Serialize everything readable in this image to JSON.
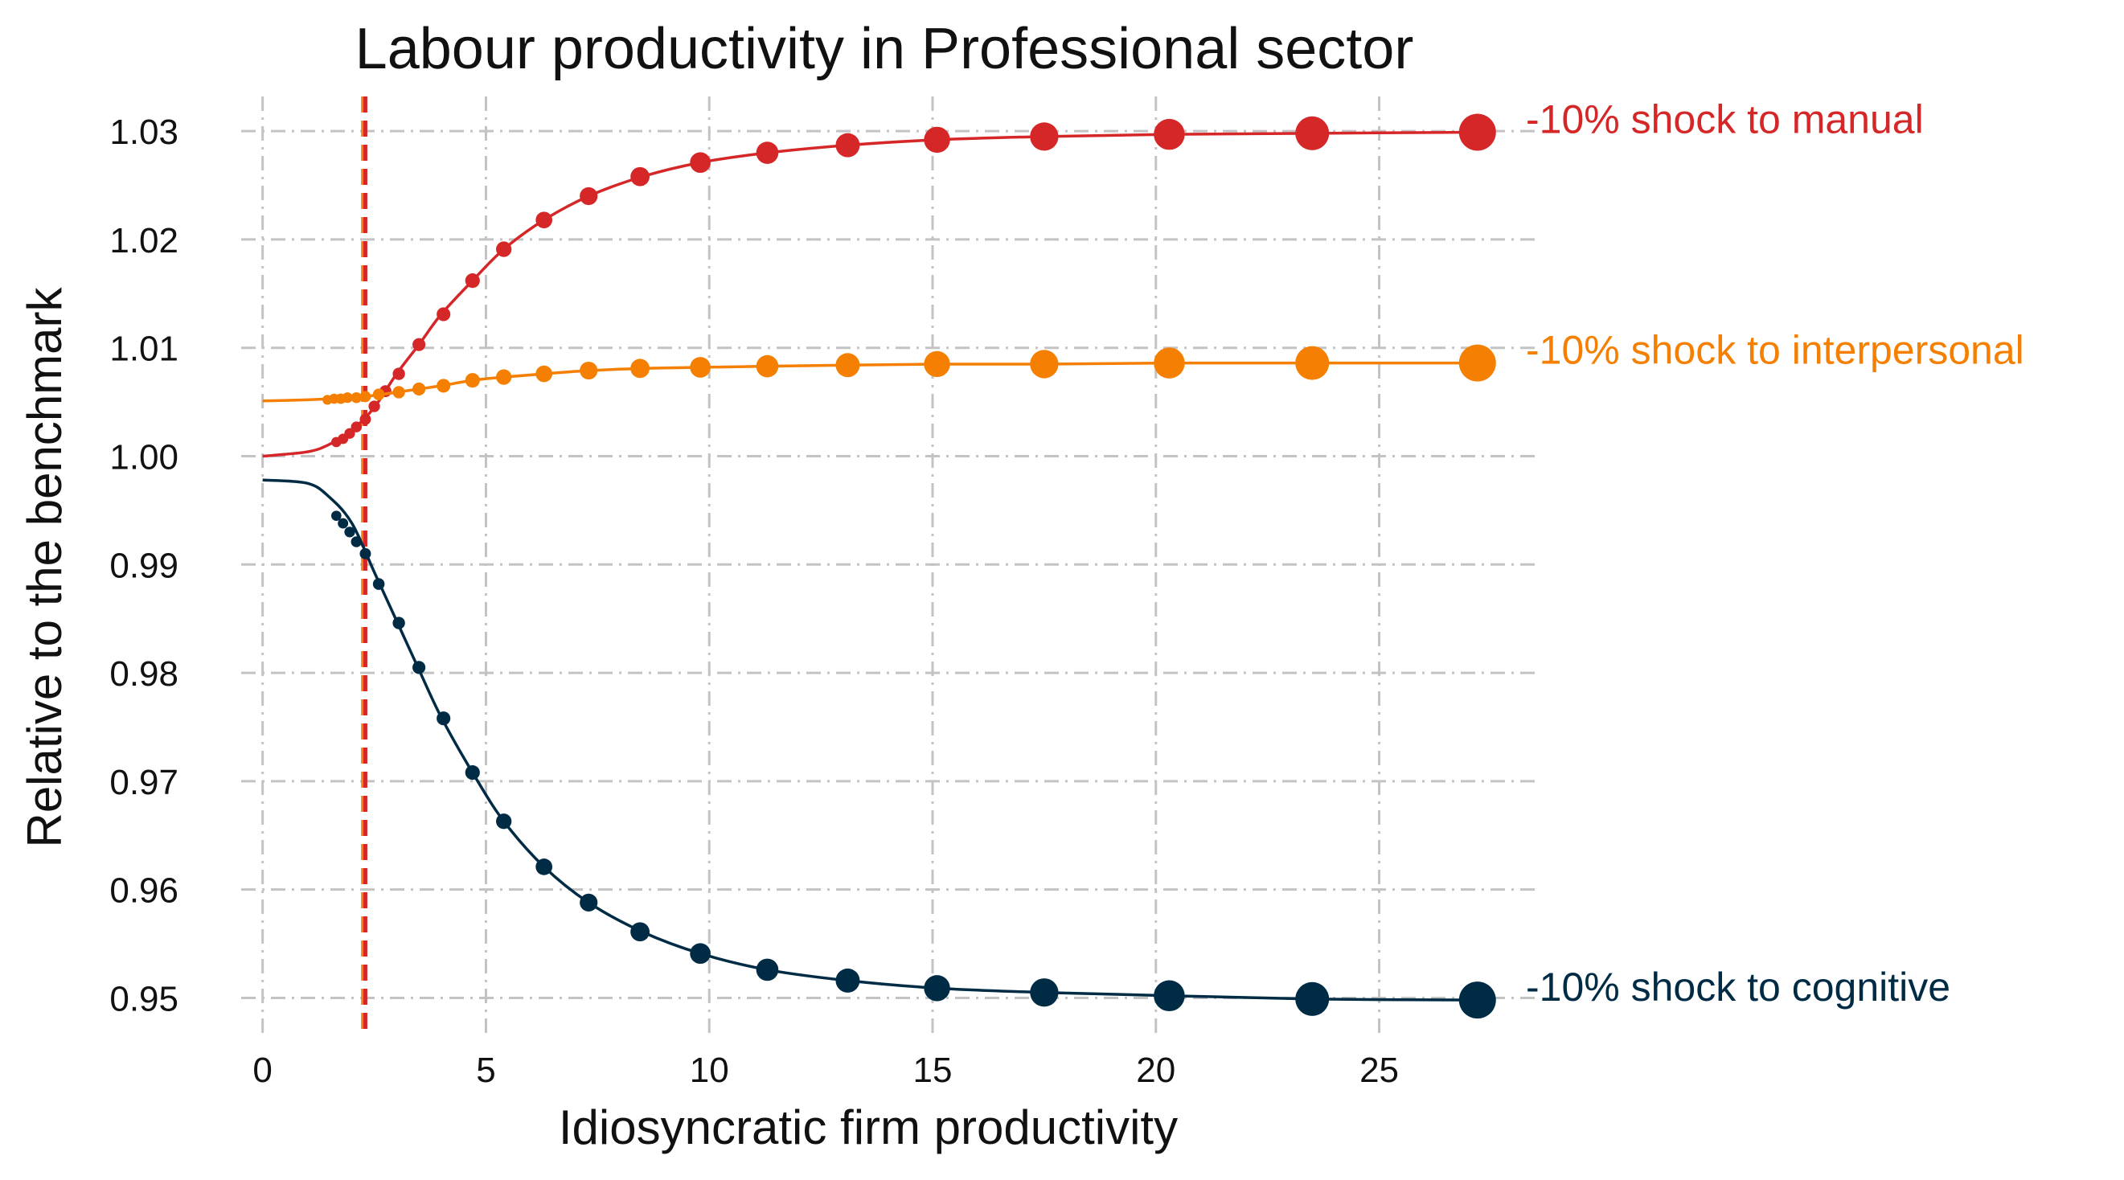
{
  "chart_data": {
    "type": "line",
    "title": "Labour productivity in Professional sector",
    "xlabel": "Idiosyncratic firm productivity",
    "ylabel": "Relative to the benchmark",
    "xlim": [
      -1.2,
      28.5
    ],
    "ylim": [
      0.9464,
      1.0332
    ],
    "xticks": [
      0,
      5,
      10,
      15,
      20,
      25
    ],
    "yticks": [
      0.95,
      0.96,
      0.97,
      0.98,
      0.99,
      1.0,
      1.01,
      1.02,
      1.03
    ],
    "ytick_labels": [
      "0.95",
      "0.96",
      "0.97",
      "0.98",
      "0.99",
      "1.00",
      "1.01",
      "1.02",
      "1.03"
    ],
    "grid": true,
    "vertical_lines": [
      {
        "x": 2.25,
        "color": "#f57f17",
        "style": "dashed"
      },
      {
        "x": 2.3,
        "color": "#d62728",
        "style": "dashed"
      }
    ],
    "series": [
      {
        "name": "-10% shock to manual",
        "color": "#d62728",
        "line": {
          "x": [
            0,
            1,
            1.5,
            2,
            2.5,
            3,
            3.5,
            4,
            4.7,
            5.4,
            6.3,
            7.3,
            8.5,
            9.8,
            11.3,
            13.1,
            15.1,
            17.5,
            20.3,
            23.5,
            27.2
          ],
          "y": [
            1.0,
            1.0004,
            1.0011,
            1.0024,
            1.0045,
            1.0076,
            1.0103,
            1.0131,
            1.0162,
            1.0191,
            1.0218,
            1.024,
            1.0258,
            1.0271,
            1.028,
            1.0287,
            1.0292,
            1.0295,
            1.0297,
            1.0298,
            1.0299
          ]
        },
        "markers": {
          "x": [
            1.65,
            1.8,
            1.95,
            2.1,
            2.3,
            2.5,
            2.75,
            3.05,
            3.5,
            4.05,
            4.7,
            5.4,
            6.3,
            7.3,
            8.45,
            9.8,
            11.3,
            13.1,
            15.1,
            17.5,
            20.3,
            23.5,
            27.2
          ],
          "y": [
            1.0013,
            1.0016,
            1.0021,
            1.0027,
            1.0034,
            1.0046,
            1.006,
            1.0076,
            1.0103,
            1.0131,
            1.0162,
            1.0191,
            1.0218,
            1.024,
            1.0258,
            1.0271,
            1.028,
            1.0287,
            1.0292,
            1.0295,
            1.0297,
            1.0298,
            1.0299
          ]
        }
      },
      {
        "name": "-10% shock to interpersonal",
        "color": "#f57f00",
        "line": {
          "x": [
            0,
            1,
            1.5,
            2,
            2.5,
            3,
            3.5,
            4,
            4.7,
            5.4,
            6.3,
            7.3,
            8.5,
            9.8,
            11.3,
            13.1,
            15.1,
            17.5,
            20.3,
            23.5,
            27.2
          ],
          "y": [
            1.0051,
            1.0052,
            1.0053,
            1.0054,
            1.0056,
            1.0059,
            1.0062,
            1.0065,
            1.007,
            1.0073,
            1.0076,
            1.0079,
            1.0081,
            1.0082,
            1.0083,
            1.0084,
            1.0085,
            1.0085,
            1.0086,
            1.0086,
            1.0086
          ]
        },
        "markers": {
          "x": [
            1.45,
            1.6,
            1.75,
            1.9,
            2.1,
            2.3,
            2.6,
            3.05,
            3.5,
            4.05,
            4.7,
            5.4,
            6.3,
            7.3,
            8.45,
            9.8,
            11.3,
            13.1,
            15.1,
            17.5,
            20.3,
            23.5,
            27.2
          ],
          "y": [
            1.0052,
            1.0053,
            1.0053,
            1.0054,
            1.0054,
            1.0055,
            1.0057,
            1.0059,
            1.0062,
            1.0065,
            1.007,
            1.0073,
            1.0076,
            1.0079,
            1.0081,
            1.0082,
            1.0083,
            1.0084,
            1.0085,
            1.0085,
            1.0086,
            1.0086,
            1.0086
          ]
        }
      },
      {
        "name": "-10% shock to cognitive",
        "color": "#002b45",
        "line": {
          "x": [
            0,
            1,
            1.5,
            2,
            2.5,
            3,
            3.5,
            4,
            4.7,
            5.4,
            6.3,
            7.3,
            8.5,
            9.8,
            11.3,
            13.1,
            15.1,
            17.5,
            20.3,
            23.5,
            27.2
          ],
          "y": [
            0.9978,
            0.9975,
            0.9962,
            0.9938,
            0.9893,
            0.9848,
            0.9803,
            0.9759,
            0.9708,
            0.9663,
            0.9621,
            0.9588,
            0.9561,
            0.9541,
            0.9526,
            0.9516,
            0.9509,
            0.9505,
            0.9502,
            0.9499,
            0.9498
          ]
        },
        "markers": {
          "x": [
            1.65,
            1.8,
            1.95,
            2.1,
            2.3,
            2.6,
            3.05,
            3.5,
            4.05,
            4.7,
            5.4,
            6.3,
            7.3,
            8.45,
            9.8,
            11.3,
            13.1,
            15.1,
            17.5,
            20.3,
            23.5,
            27.2
          ],
          "y": [
            0.9945,
            0.9938,
            0.993,
            0.9921,
            0.991,
            0.9882,
            0.9846,
            0.9805,
            0.9758,
            0.9708,
            0.9663,
            0.9621,
            0.9588,
            0.9561,
            0.9541,
            0.9526,
            0.9516,
            0.9509,
            0.9505,
            0.9502,
            0.9499,
            0.9498
          ]
        }
      }
    ]
  }
}
